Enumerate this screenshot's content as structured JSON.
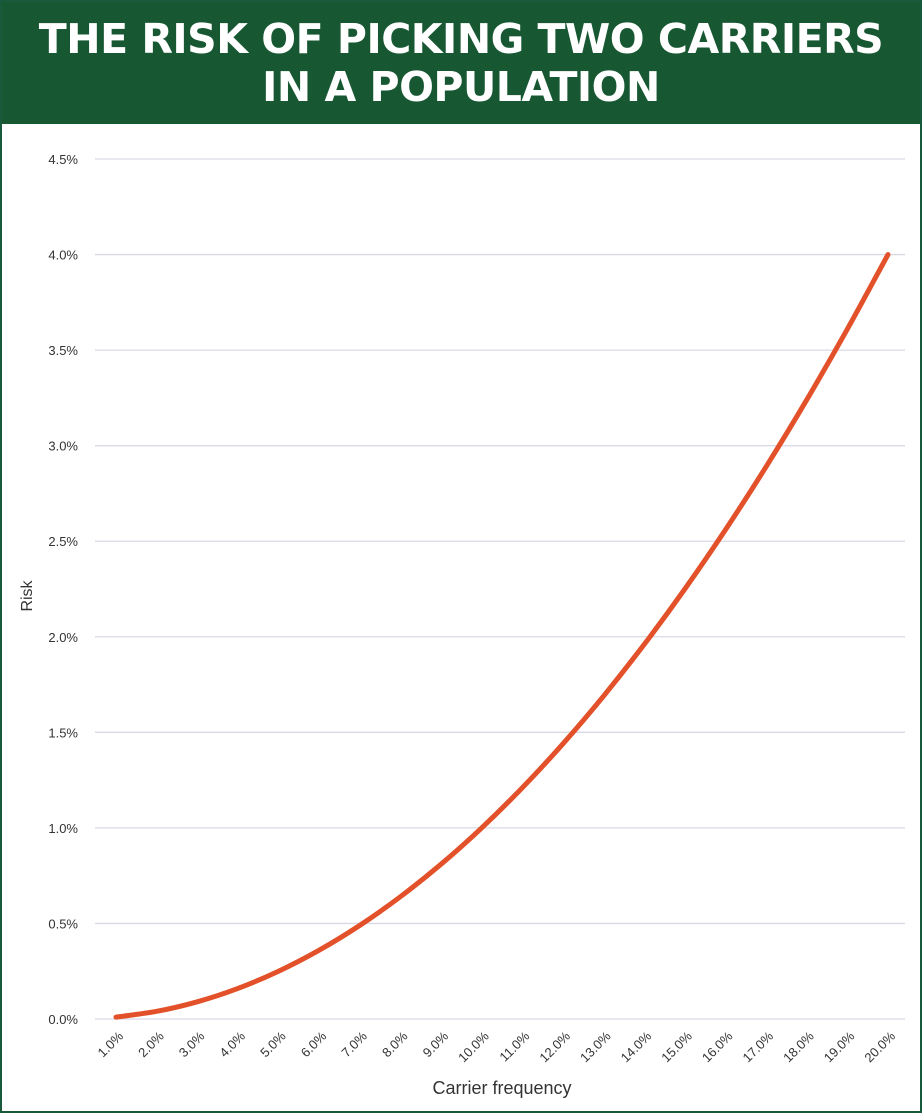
{
  "title": {
    "line1": "THE RISK OF PICKING TWO CARRIERS",
    "line2": "IN A POPULATION"
  },
  "colors": {
    "banner": "#175833",
    "line": "#e3512a",
    "grid": "#d9d9e6"
  },
  "chart_data": {
    "type": "line",
    "title": "THE RISK OF PICKING TWO CARRIERS IN A POPULATION",
    "xlabel": "Carrier frequency",
    "ylabel": "Risk",
    "x_unit": "percent",
    "y_unit": "percent",
    "grid": true,
    "legend": "none",
    "ylim": [
      0,
      4.5
    ],
    "y_ticks": [
      "0.0%",
      "0.5%",
      "1.0%",
      "1.5%",
      "2.0%",
      "2.5%",
      "3.0%",
      "3.5%",
      "4.0%",
      "4.5%"
    ],
    "y_tick_values": [
      0,
      0.5,
      1,
      1.5,
      2,
      2.5,
      3,
      3.5,
      4,
      4.5
    ],
    "categories": [
      "1.0%",
      "2.0%",
      "3.0%",
      "4.0%",
      "5.0%",
      "6.0%",
      "7.0%",
      "8.0%",
      "9.0%",
      "10.0%",
      "11.0%",
      "12.0%",
      "13.0%",
      "14.0%",
      "15.0%",
      "16.0%",
      "17.0%",
      "18.0%",
      "19.0%",
      "20.0%"
    ],
    "x": [
      1,
      2,
      3,
      4,
      5,
      6,
      7,
      8,
      9,
      10,
      11,
      12,
      13,
      14,
      15,
      16,
      17,
      18,
      19,
      20
    ],
    "series": [
      {
        "values": [
          0.01,
          0.04,
          0.09,
          0.16,
          0.25,
          0.36,
          0.49,
          0.64,
          0.81,
          1.0,
          1.21,
          1.44,
          1.69,
          1.96,
          2.25,
          2.56,
          2.89,
          3.24,
          3.61,
          4.0
        ]
      }
    ]
  }
}
